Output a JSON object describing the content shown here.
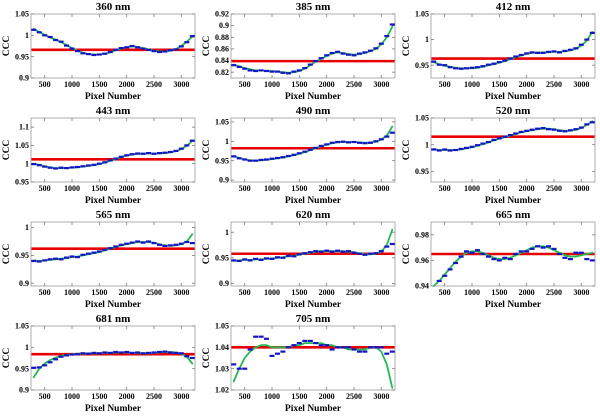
{
  "figure": {
    "background": "#ffffff",
    "colors": {
      "markers": "#1515c8",
      "fit_curve": "#25b953",
      "reference_line": "#e60000",
      "axis_box": "#9a9a9a",
      "tick_mark": "#7a7a7a",
      "text": "#000000"
    }
  },
  "chart_data": {
    "type": "line",
    "layout": "3-column grid, 4 rows, 11 panels",
    "xlabel": "Pixel Number",
    "ylabel": "CCC",
    "xlim": [
      250,
      3250
    ],
    "xticks": {
      "values": [
        500,
        1000,
        1500,
        2000,
        2500,
        3000
      ],
      "labels": [
        "500",
        "1000",
        "1500",
        "2000",
        "2500",
        "3000"
      ]
    },
    "x": [
      300,
      400,
      500,
      600,
      700,
      800,
      900,
      1000,
      1100,
      1200,
      1300,
      1400,
      1500,
      1600,
      1700,
      1800,
      1900,
      2000,
      2100,
      2200,
      2300,
      2400,
      2500,
      2600,
      2700,
      2800,
      2900,
      3000,
      3100,
      3200
    ],
    "series_legend": [
      "measured CCC (blue dash markers)",
      "fitted curve (green)",
      "reference CCC (red horizontal line)"
    ],
    "panels": [
      {
        "title": "360 nm",
        "ylim": [
          0.9,
          1.05
        ],
        "yticks": {
          "values": [
            0.9,
            0.95,
            1,
            1.05
          ],
          "labels": [
            "0.9",
            "0.95",
            "1",
            "1.05"
          ]
        },
        "red_line": 0.966,
        "measured": [
          1.013,
          1.007,
          1.0,
          0.996,
          0.989,
          0.985,
          0.976,
          0.969,
          0.963,
          0.958,
          0.956,
          0.954,
          0.955,
          0.957,
          0.961,
          0.966,
          0.97,
          0.972,
          0.975,
          0.972,
          0.969,
          0.966,
          0.963,
          0.961,
          0.962,
          0.965,
          0.967,
          0.974,
          0.984,
          0.998
        ],
        "fit": [
          1.015,
          1.008,
          1.001,
          0.995,
          0.99,
          0.984,
          0.977,
          0.97,
          0.964,
          0.959,
          0.956,
          0.955,
          0.955,
          0.957,
          0.96,
          0.965,
          0.969,
          0.972,
          0.974,
          0.973,
          0.97,
          0.967,
          0.964,
          0.962,
          0.962,
          0.964,
          0.968,
          0.975,
          0.985,
          0.997
        ]
      },
      {
        "title": "385 nm",
        "ylim": [
          0.81,
          0.92
        ],
        "yticks": {
          "values": [
            0.82,
            0.84,
            0.86,
            0.88,
            0.9,
            0.92
          ],
          "labels": [
            "0.82",
            "0.84",
            "0.86",
            "0.88",
            "0.9",
            "0.92"
          ]
        },
        "red_line": 0.839,
        "measured": [
          0.832,
          0.829,
          0.826,
          0.823,
          0.822,
          0.823,
          0.822,
          0.821,
          0.821,
          0.819,
          0.818,
          0.821,
          0.823,
          0.827,
          0.833,
          0.839,
          0.844,
          0.849,
          0.853,
          0.855,
          0.852,
          0.85,
          0.849,
          0.852,
          0.854,
          0.857,
          0.861,
          0.869,
          0.882,
          0.902
        ],
        "fit": [
          0.833,
          0.83,
          0.827,
          0.825,
          0.823,
          0.823,
          0.822,
          0.822,
          0.821,
          0.82,
          0.819,
          0.82,
          0.822,
          0.826,
          0.832,
          0.838,
          0.843,
          0.848,
          0.852,
          0.854,
          0.853,
          0.851,
          0.85,
          0.851,
          0.853,
          0.856,
          0.86,
          0.868,
          0.88,
          0.898
        ]
      },
      {
        "title": "412 nm",
        "ylim": [
          0.925,
          1.05
        ],
        "yticks": {
          "values": [
            0.95,
            1,
            1.05
          ],
          "labels": [
            "0.95",
            "1",
            "1.05"
          ]
        },
        "red_line": 0.963,
        "measured": [
          0.957,
          0.951,
          0.95,
          0.946,
          0.944,
          0.943,
          0.944,
          0.945,
          0.946,
          0.948,
          0.951,
          0.953,
          0.956,
          0.959,
          0.963,
          0.967,
          0.97,
          0.973,
          0.975,
          0.974,
          0.974,
          0.976,
          0.977,
          0.975,
          0.978,
          0.98,
          0.983,
          0.99,
          1.0,
          1.013
        ],
        "fit": [
          0.956,
          0.952,
          0.949,
          0.947,
          0.945,
          0.944,
          0.944,
          0.944,
          0.945,
          0.947,
          0.95,
          0.952,
          0.955,
          0.958,
          0.962,
          0.966,
          0.969,
          0.972,
          0.974,
          0.975,
          0.975,
          0.975,
          0.976,
          0.976,
          0.977,
          0.979,
          0.982,
          0.988,
          0.998,
          1.015
        ]
      },
      {
        "title": "443 nm",
        "ylim": [
          0.95,
          1.125
        ],
        "yticks": {
          "values": [
            0.95,
            1,
            1.05,
            1.1
          ],
          "labels": [
            "0.95",
            "1",
            "1.05",
            "1.1"
          ]
        },
        "red_line": 1.012,
        "measured": [
          0.999,
          0.996,
          0.992,
          0.989,
          0.987,
          0.989,
          0.988,
          0.99,
          0.991,
          0.993,
          0.995,
          0.997,
          1.0,
          1.004,
          1.009,
          1.014,
          1.019,
          1.023,
          1.026,
          1.028,
          1.027,
          1.029,
          1.027,
          1.029,
          1.03,
          1.032,
          1.035,
          1.041,
          1.05,
          1.063
        ],
        "fit": [
          1.0,
          0.997,
          0.993,
          0.99,
          0.988,
          0.988,
          0.988,
          0.989,
          0.99,
          0.992,
          0.994,
          0.996,
          0.999,
          1.003,
          1.008,
          1.013,
          1.018,
          1.022,
          1.025,
          1.027,
          1.028,
          1.028,
          1.028,
          1.028,
          1.029,
          1.031,
          1.034,
          1.04,
          1.049,
          1.062
        ]
      },
      {
        "title": "490 nm",
        "ylim": [
          0.895,
          1.06
        ],
        "yticks": {
          "values": [
            0.9,
            0.95,
            1,
            1.05
          ],
          "labels": [
            "0.9",
            "0.95",
            "1",
            "1.05"
          ]
        },
        "red_line": 0.982,
        "measured": [
          0.961,
          0.956,
          0.953,
          0.95,
          0.95,
          0.952,
          0.953,
          0.955,
          0.957,
          0.959,
          0.962,
          0.965,
          0.969,
          0.973,
          0.978,
          0.983,
          0.988,
          0.992,
          0.996,
          0.998,
          0.999,
          0.997,
          0.998,
          0.996,
          0.995,
          0.996,
          1.0,
          1.005,
          1.012,
          1.022
        ],
        "fit": [
          0.962,
          0.957,
          0.953,
          0.951,
          0.95,
          0.951,
          0.952,
          0.954,
          0.956,
          0.958,
          0.961,
          0.964,
          0.968,
          0.972,
          0.977,
          0.982,
          0.987,
          0.991,
          0.995,
          0.997,
          0.998,
          0.998,
          0.998,
          0.997,
          0.996,
          0.997,
          0.999,
          1.004,
          1.015,
          1.038
        ]
      },
      {
        "title": "520 nm",
        "ylim": [
          0.93,
          1.05
        ],
        "yticks": {
          "values": [
            0.95,
            1,
            1.05
          ],
          "labels": [
            "0.95",
            "1",
            "1.05"
          ]
        },
        "red_line": 1.015,
        "measured": [
          0.991,
          0.989,
          0.991,
          0.989,
          0.99,
          0.992,
          0.994,
          0.996,
          0.999,
          1.002,
          1.005,
          1.009,
          1.012,
          1.015,
          1.018,
          1.021,
          1.024,
          1.026,
          1.028,
          1.03,
          1.031,
          1.029,
          1.028,
          1.026,
          1.025,
          1.027,
          1.029,
          1.032,
          1.038,
          1.042
        ],
        "fit": [
          0.992,
          0.99,
          0.99,
          0.99,
          0.99,
          0.991,
          0.993,
          0.995,
          0.998,
          1.001,
          1.004,
          1.008,
          1.011,
          1.014,
          1.017,
          1.02,
          1.023,
          1.025,
          1.027,
          1.029,
          1.03,
          1.03,
          1.029,
          1.027,
          1.026,
          1.026,
          1.028,
          1.031,
          1.037,
          1.044
        ]
      },
      {
        "title": "565 nm",
        "ylim": [
          0.895,
          1.01
        ],
        "yticks": {
          "values": [
            0.9,
            0.95,
            1
          ],
          "labels": [
            "0.9",
            "0.95",
            "1"
          ]
        },
        "red_line": 0.962,
        "measured": [
          0.94,
          0.939,
          0.941,
          0.943,
          0.944,
          0.943,
          0.946,
          0.948,
          0.947,
          0.951,
          0.953,
          0.955,
          0.957,
          0.96,
          0.963,
          0.966,
          0.969,
          0.971,
          0.973,
          0.975,
          0.973,
          0.975,
          0.972,
          0.969,
          0.967,
          0.968,
          0.969,
          0.971,
          0.974,
          0.972
        ],
        "fit": [
          0.941,
          0.94,
          0.941,
          0.942,
          0.943,
          0.944,
          0.945,
          0.947,
          0.948,
          0.95,
          0.952,
          0.954,
          0.956,
          0.959,
          0.962,
          0.965,
          0.968,
          0.97,
          0.972,
          0.974,
          0.974,
          0.974,
          0.973,
          0.97,
          0.968,
          0.967,
          0.968,
          0.97,
          0.975,
          0.988
        ]
      },
      {
        "title": "620 nm",
        "ylim": [
          0.895,
          1.02
        ],
        "yticks": {
          "values": [
            0.9,
            0.95,
            1
          ],
          "labels": [
            "0.9",
            "0.95",
            "1"
          ]
        },
        "red_line": 0.958,
        "measured": [
          0.945,
          0.944,
          0.947,
          0.945,
          0.948,
          0.946,
          0.949,
          0.948,
          0.951,
          0.95,
          0.954,
          0.953,
          0.957,
          0.959,
          0.961,
          0.963,
          0.962,
          0.964,
          0.962,
          0.964,
          0.962,
          0.963,
          0.96,
          0.958,
          0.956,
          0.958,
          0.959,
          0.963,
          0.972,
          0.977
        ],
        "fit": [
          0.944,
          0.945,
          0.946,
          0.946,
          0.947,
          0.947,
          0.948,
          0.949,
          0.95,
          0.951,
          0.953,
          0.954,
          0.956,
          0.958,
          0.96,
          0.962,
          0.963,
          0.963,
          0.963,
          0.963,
          0.963,
          0.962,
          0.961,
          0.959,
          0.957,
          0.957,
          0.958,
          0.962,
          0.975,
          1.005
        ]
      },
      {
        "title": "665 nm",
        "ylim": [
          0.94,
          0.99
        ],
        "yticks": {
          "values": [
            0.94,
            0.96,
            0.98
          ],
          "labels": [
            "0.94",
            "0.96",
            "0.98"
          ]
        },
        "red_line": 0.965,
        "measured": [
          0.938,
          0.944,
          0.948,
          0.953,
          0.958,
          0.963,
          0.967,
          0.966,
          0.968,
          0.965,
          0.963,
          0.961,
          0.96,
          0.962,
          0.961,
          0.965,
          0.967,
          0.967,
          0.969,
          0.971,
          0.97,
          0.971,
          0.969,
          0.965,
          0.962,
          0.961,
          0.966,
          0.966,
          0.961,
          0.96
        ],
        "fit": [
          0.94,
          0.944,
          0.949,
          0.954,
          0.959,
          0.963,
          0.966,
          0.967,
          0.967,
          0.966,
          0.964,
          0.962,
          0.961,
          0.961,
          0.962,
          0.964,
          0.966,
          0.968,
          0.97,
          0.971,
          0.971,
          0.97,
          0.968,
          0.966,
          0.964,
          0.963,
          0.963,
          0.964,
          0.965,
          0.966
        ]
      },
      {
        "title": "681 nm",
        "ylim": [
          0.9,
          1.05
        ],
        "yticks": {
          "values": [
            0.9,
            0.95,
            1,
            1.05
          ],
          "labels": [
            "0.9",
            "0.95",
            "1",
            "1.05"
          ]
        },
        "red_line": 0.984,
        "measured": [
          0.952,
          0.953,
          0.958,
          0.965,
          0.972,
          0.978,
          0.981,
          0.983,
          0.984,
          0.986,
          0.985,
          0.987,
          0.986,
          0.988,
          0.987,
          0.989,
          0.988,
          0.989,
          0.987,
          0.988,
          0.986,
          0.987,
          0.988,
          0.989,
          0.99,
          0.988,
          0.987,
          0.986,
          0.979,
          0.975
        ],
        "fit": [
          0.93,
          0.95,
          0.962,
          0.97,
          0.976,
          0.98,
          0.982,
          0.984,
          0.985,
          0.985,
          0.986,
          0.986,
          0.986,
          0.987,
          0.987,
          0.988,
          0.988,
          0.988,
          0.987,
          0.987,
          0.986,
          0.986,
          0.987,
          0.988,
          0.989,
          0.989,
          0.988,
          0.985,
          0.978,
          0.962
        ]
      },
      {
        "title": "705 nm",
        "ylim": [
          1.02,
          1.05
        ],
        "yticks": {
          "values": [
            1.02,
            1.03,
            1.04,
            1.05
          ],
          "labels": [
            "1.02",
            "1.03",
            "1.04",
            "1.05"
          ]
        },
        "red_line": 1.04,
        "measured": [
          1.032,
          1.03,
          1.03,
          1.039,
          1.045,
          1.045,
          1.044,
          1.036,
          1.037,
          1.038,
          1.04,
          1.041,
          1.042,
          1.043,
          1.043,
          1.042,
          1.041,
          1.041,
          1.039,
          1.04,
          1.04,
          1.04,
          1.039,
          1.038,
          1.038,
          1.04,
          1.04,
          1.04,
          1.037,
          1.038
        ],
        "fit": [
          1.024,
          1.03,
          1.035,
          1.038,
          1.04,
          1.041,
          1.041,
          1.04,
          1.04,
          1.04,
          1.04,
          1.041,
          1.041,
          1.042,
          1.042,
          1.042,
          1.042,
          1.041,
          1.041,
          1.04,
          1.04,
          1.039,
          1.039,
          1.039,
          1.039,
          1.04,
          1.04,
          1.038,
          1.032,
          1.021
        ]
      }
    ]
  }
}
